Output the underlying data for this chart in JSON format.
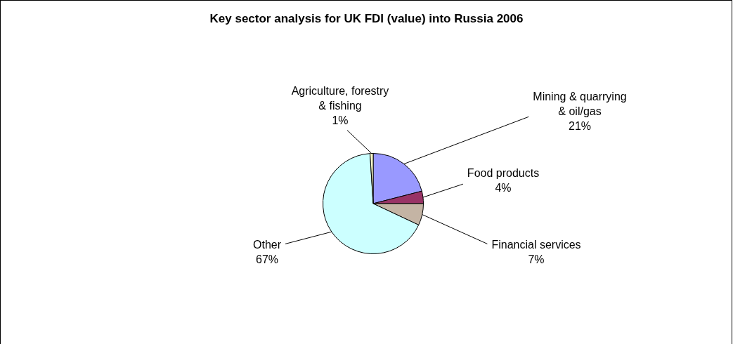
{
  "chart_data": {
    "type": "pie",
    "title": "Key sector analysis for UK FDI (value) into Russia 2006",
    "categories": [
      "Mining & quarrying & oil/gas",
      "Food products",
      "Financial services",
      "Other",
      "Agriculture, forestry & fishing"
    ],
    "values": [
      21,
      4,
      7,
      67,
      1
    ],
    "value_labels": [
      "21%",
      "4%",
      "7%",
      "67%",
      "1%"
    ],
    "colors": [
      "#9999ff",
      "#993366",
      "#c4b4a4",
      "#ccffff",
      "#ffffcc"
    ],
    "legend": false
  }
}
